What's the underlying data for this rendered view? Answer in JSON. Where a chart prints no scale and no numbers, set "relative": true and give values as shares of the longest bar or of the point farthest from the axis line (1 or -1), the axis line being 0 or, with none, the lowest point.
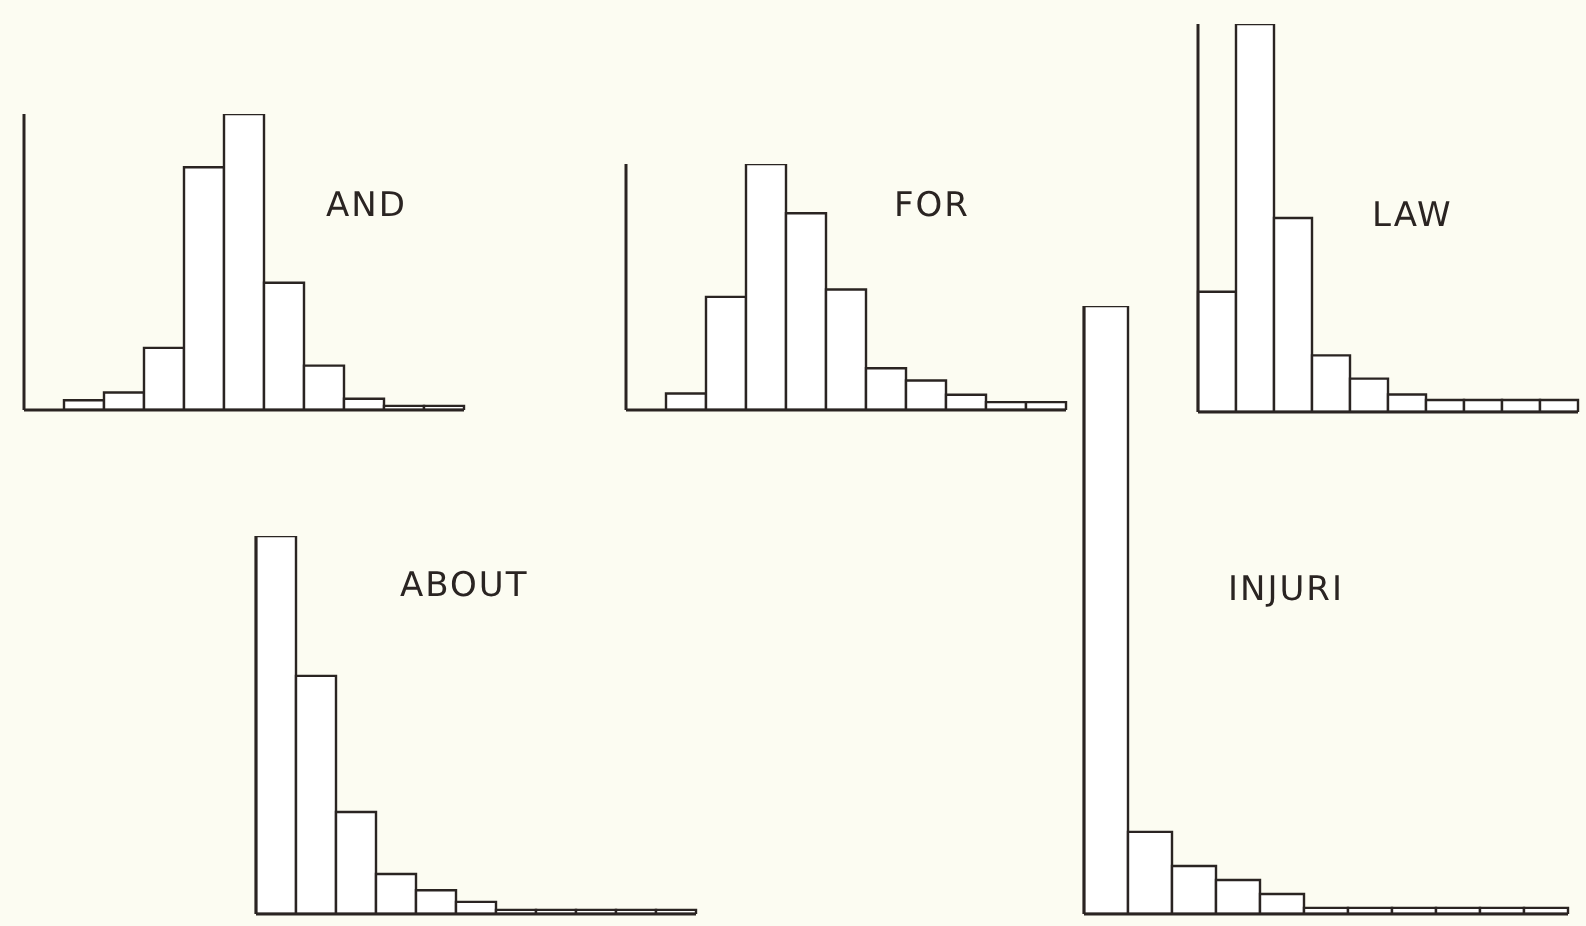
{
  "chart_data": [
    {
      "type": "bar",
      "title": "AND",
      "relative": true,
      "grid": false,
      "legend": false,
      "categories": [
        null,
        null,
        null,
        null,
        null,
        null,
        null,
        null,
        null,
        null
      ],
      "color": "#ffffff",
      "values": [
        0.033,
        0.059,
        0.21,
        0.82,
        1,
        0.43,
        0.15,
        0.038,
        0.014,
        0.014
      ]
    },
    {
      "type": "bar",
      "title": "FOR",
      "relative": true,
      "grid": false,
      "legend": false,
      "categories": [
        null,
        null,
        null,
        null,
        null,
        null,
        null,
        null,
        null,
        null
      ],
      "color": "#ffffff",
      "values": [
        0.067,
        0.46,
        1,
        0.8,
        0.49,
        0.17,
        0.12,
        0.062,
        0.032,
        0.032
      ]
    },
    {
      "type": "bar",
      "title": "LAW",
      "relative": true,
      "grid": false,
      "legend": false,
      "categories": [
        null,
        null,
        null,
        null,
        null,
        null,
        null,
        null,
        null,
        null
      ],
      "color": "#ffffff",
      "values": [
        0.31,
        1,
        0.5,
        0.146,
        0.086,
        0.045,
        0.031,
        0.031,
        0.031,
        0.031
      ]
    },
    {
      "type": "bar",
      "title": "ABOUT",
      "relative": true,
      "grid": false,
      "legend": false,
      "categories": [
        null,
        null,
        null,
        null,
        null,
        null,
        null,
        null,
        null,
        null,
        null
      ],
      "color": "#ffffff",
      "values": [
        1,
        0.63,
        0.27,
        0.106,
        0.063,
        0.032,
        0.011,
        0.011,
        0.011,
        0.011,
        0.011
      ]
    },
    {
      "type": "bar",
      "title": "INJURI",
      "relative": true,
      "grid": false,
      "legend": false,
      "categories": [
        null,
        null,
        null,
        null,
        null,
        null,
        null,
        null,
        null,
        null,
        null
      ],
      "color": "#ffffff",
      "values": [
        1,
        0.135,
        0.079,
        0.056,
        0.033,
        0.01,
        0.01,
        0.01,
        0.01,
        0.01,
        0.01
      ]
    }
  ]
}
